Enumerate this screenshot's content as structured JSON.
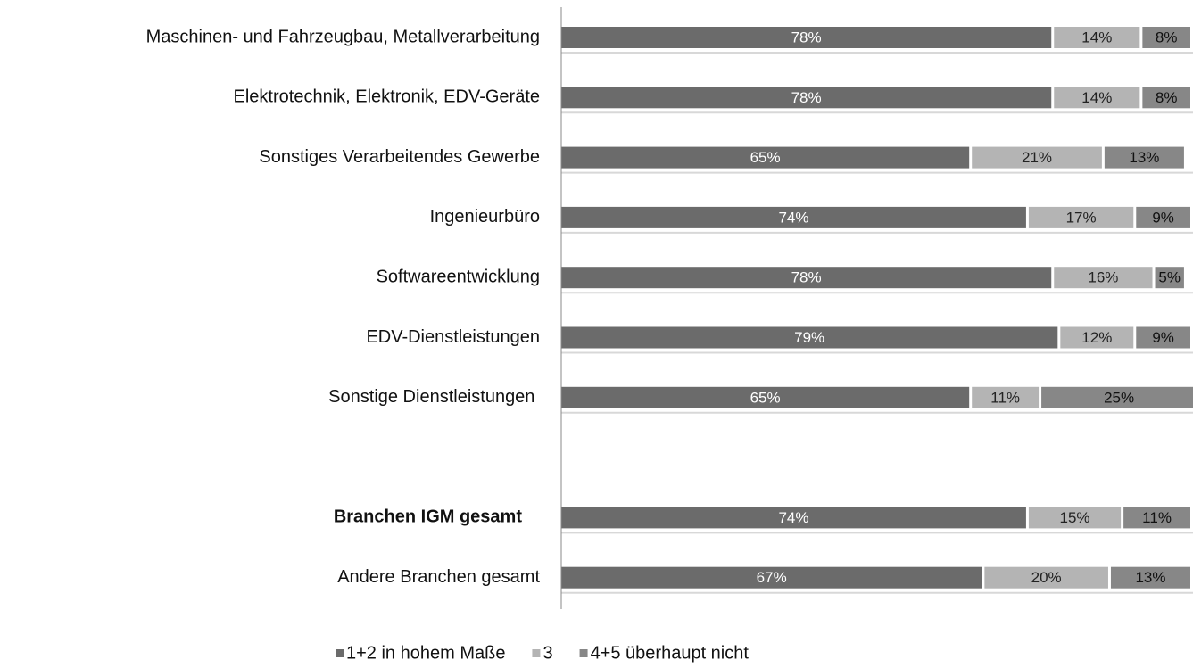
{
  "chart_data": {
    "type": "stacked_barh",
    "categories": [
      "Maschinen- und Fahrzeugbau, Metallverarbeitung",
      "Elektrotechnik, Elektronik, EDV-Geräte",
      "Sonstiges Verarbeitendes Gewerbe",
      "Ingenieurbüro",
      "Softwareentwicklung",
      "EDV-Dienstleistungen",
      "Sonstige Dienstleistungen ",
      null,
      "Branchen IGM gesamt",
      "Andere Branchen gesamt"
    ],
    "bold_categories": [
      8
    ],
    "series": [
      {
        "name": "1+2 in hohem Maße",
        "color": "#6b6b6b",
        "label_color": "#ffffff",
        "values": [
          78,
          78,
          65,
          74,
          78,
          79,
          65,
          null,
          74,
          67
        ],
        "value_labels": [
          "78%",
          "78%",
          "65%",
          "74%",
          "78%",
          "79%",
          "65%",
          null,
          "74%",
          "67%"
        ]
      },
      {
        "name": "3",
        "color": "#b4b4b4",
        "label_color": "#222222",
        "values": [
          14,
          14,
          21,
          17,
          16,
          12,
          11,
          null,
          15,
          20
        ],
        "value_labels": [
          "14%",
          "14%",
          "21%",
          "17%",
          "16%",
          "12%",
          "11%",
          null,
          "15%",
          "20%"
        ]
      },
      {
        "name": "4+5 überhaupt nicht",
        "color": "#878787",
        "label_color": "#111111",
        "values": [
          8,
          8,
          13,
          9,
          5,
          9,
          25,
          null,
          11,
          13
        ],
        "value_labels": [
          "8%",
          "8%",
          "13%",
          "9%",
          "5%",
          "9%",
          "25%",
          null,
          "11%",
          "13%"
        ]
      }
    ],
    "xlim": [
      0,
      100
    ],
    "legend": "bottom"
  }
}
